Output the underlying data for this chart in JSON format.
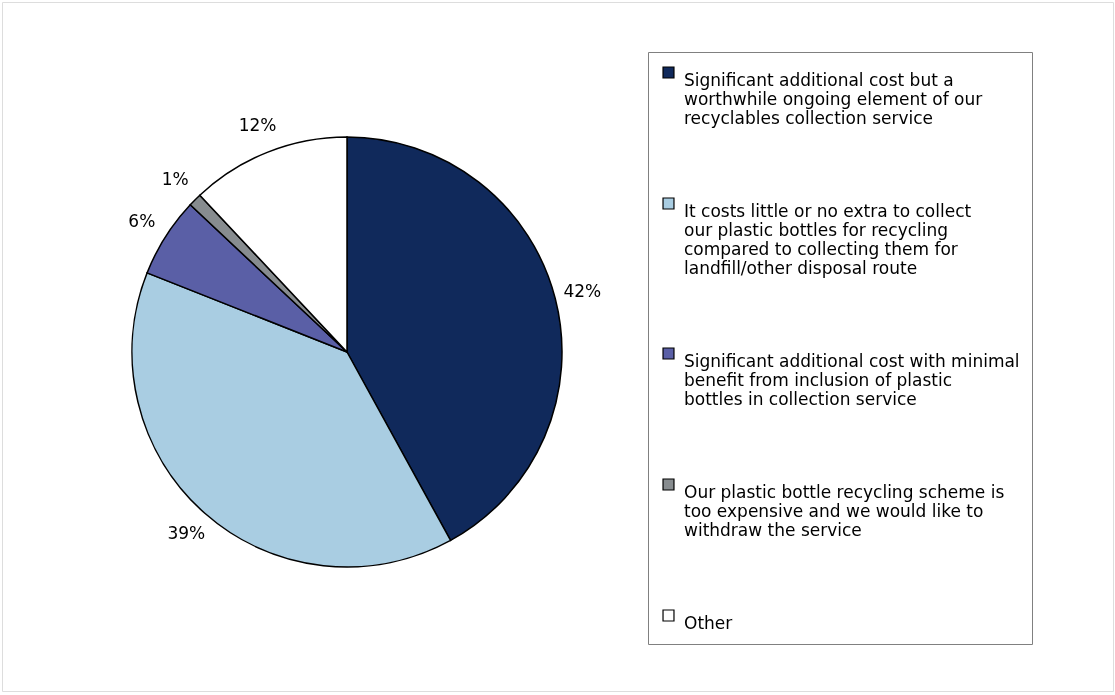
{
  "chart_data": {
    "type": "pie",
    "categories": [
      "Significant additional cost but a worthwhile ongoing element of our recyclables collection service",
      "It costs little or no extra to collect our plastic bottles for recycling compared to collecting them for landfill/other disposal route",
      "Significant additional cost with minimal benefit from inclusion of plastic bottles in collection service",
      "Our plastic bottle recycling scheme is too expensive and we would like to withdraw the service",
      "Other"
    ],
    "values": [
      42,
      39,
      6,
      1,
      12
    ],
    "value_labels": [
      "42%",
      "39%",
      "6%",
      "1%",
      "12%"
    ],
    "colors": [
      "#10295b",
      "#a9cde2",
      "#5a5fa6",
      "#878c8f",
      "#ffffff"
    ],
    "legend": "right"
  }
}
